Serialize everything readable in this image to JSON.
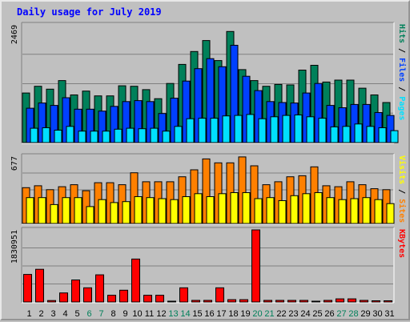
{
  "chart_data": {
    "type": "bar",
    "title": "Daily usage for July 2019",
    "categories": [
      "1",
      "2",
      "3",
      "4",
      "5",
      "6",
      "7",
      "8",
      "9",
      "10",
      "11",
      "12",
      "13",
      "14",
      "15",
      "16",
      "17",
      "18",
      "19",
      "20",
      "21",
      "22",
      "23",
      "24",
      "25",
      "26",
      "27",
      "28",
      "29",
      "30",
      "31"
    ],
    "weekend_days": [
      "6",
      "7",
      "13",
      "14",
      "20",
      "21",
      "27",
      "28"
    ],
    "colors": {
      "hits": "#00805a",
      "files": "#0040ff",
      "pages": "#00e0ff",
      "sites": "#ff8000",
      "visits": "#ffff00",
      "kbytes": "#ff0000",
      "weekday_label": "#000000",
      "weekend_label": "#00805a"
    },
    "panels": [
      {
        "id": "hits-files-pages",
        "max_label": "2469",
        "ylim": [
          0,
          2469
        ],
        "side_labels": [
          {
            "text": "Hits",
            "color": "#00805a"
          },
          {
            "text": "Files",
            "color": "#0040ff"
          },
          {
            "text": "Pages",
            "color": "#00e0ff"
          }
        ],
        "series": [
          {
            "name": "Hits",
            "color": "#00805a",
            "values": [
              1040,
              1180,
              1120,
              1300,
              1000,
              1080,
              980,
              980,
              1190,
              1180,
              1110,
              920,
              1240,
              1640,
              1910,
              2140,
              1720,
              2330,
              1530,
              1300,
              1180,
              1220,
              1210,
              1520,
              1620,
              1270,
              1310,
              1310,
              1140,
              1000,
              840
            ]
          },
          {
            "name": "Files",
            "color": "#0040ff",
            "values": [
              720,
              830,
              780,
              940,
              700,
              700,
              660,
              760,
              860,
              880,
              860,
              610,
              930,
              1290,
              1550,
              1760,
              1590,
              2040,
              1390,
              1090,
              860,
              840,
              830,
              1040,
              1240,
              780,
              730,
              800,
              800,
              630,
              570
            ]
          },
          {
            "name": "Pages",
            "color": "#00e0ff",
            "values": [
              300,
              310,
              260,
              340,
              240,
              240,
              240,
              280,
              300,
              290,
              300,
              240,
              340,
              500,
              510,
              510,
              560,
              570,
              590,
              500,
              540,
              570,
              580,
              540,
              510,
              330,
              340,
              390,
              340,
              310,
              250
            ]
          }
        ]
      },
      {
        "id": "sites-visits",
        "max_label": "677",
        "ylim": [
          0,
          677
        ],
        "side_labels": [
          {
            "text": "Visits",
            "color": "#ffff00"
          },
          {
            "text": "Sites",
            "color": "#ff8000"
          }
        ],
        "series": [
          {
            "name": "Sites",
            "color": "#ff8000",
            "values": [
              360,
              380,
              340,
              370,
              390,
              330,
              410,
              410,
              390,
              510,
              420,
              420,
              420,
              470,
              540,
              650,
              610,
              610,
              670,
              580,
              390,
              420,
              470,
              480,
              570,
              380,
              370,
              420,
              390,
              350,
              340
            ]
          },
          {
            "name": "Visits",
            "color": "#ffff00",
            "values": [
              260,
              260,
              190,
              260,
              260,
              170,
              240,
              210,
              220,
              270,
              260,
              250,
              240,
              270,
              300,
              270,
              300,
              310,
              310,
              250,
              260,
              230,
              280,
              300,
              310,
              260,
              240,
              250,
              260,
              240,
              200
            ]
          }
        ]
      },
      {
        "id": "kbytes",
        "max_label": "1830951",
        "ylim": [
          0,
          1830951
        ],
        "side_labels": [
          {
            "text": "KBytes",
            "color": "#ff0000"
          }
        ],
        "series": [
          {
            "name": "KBytes",
            "color": "#ff0000",
            "values": [
              700000,
              830000,
              36000,
              230000,
              560000,
              360000,
              690000,
              170000,
              300000,
              1090000,
              170000,
              170000,
              10000,
              360000,
              40000,
              40000,
              360000,
              60000,
              60000,
              1830951,
              40000,
              40000,
              40000,
              40000,
              20000,
              40000,
              80000,
              80000,
              40000,
              30000,
              30000
            ]
          }
        ]
      }
    ]
  }
}
